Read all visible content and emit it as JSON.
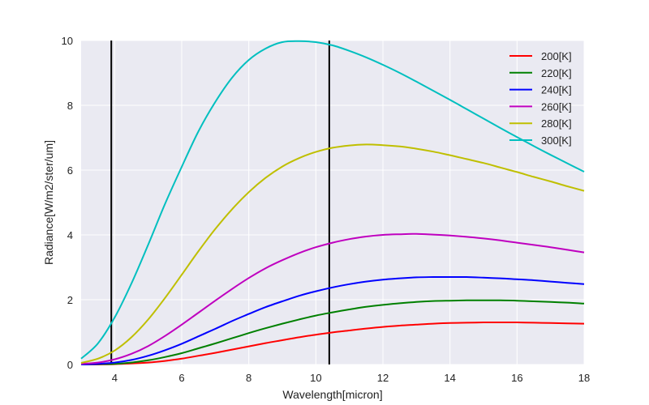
{
  "chart_data": {
    "type": "line",
    "title": "",
    "xlabel": "Wavelength[micron]",
    "ylabel": "Radiance[W/m2/ster/um]",
    "xlim": [
      3,
      18
    ],
    "ylim": [
      0,
      10
    ],
    "xticks": [
      4,
      6,
      8,
      10,
      12,
      14,
      16,
      18
    ],
    "yticks": [
      0,
      2,
      4,
      6,
      8,
      10
    ],
    "grid": true,
    "legend_position": "top-right",
    "x": [
      3,
      3.5,
      4,
      4.5,
      5,
      5.5,
      6,
      6.5,
      7,
      7.5,
      8,
      8.5,
      9,
      9.5,
      10,
      10.5,
      11,
      11.5,
      12,
      12.5,
      13,
      13.5,
      14,
      14.5,
      15,
      15.5,
      16,
      16.5,
      17,
      17.5,
      18
    ],
    "series": [
      {
        "name": "200[K]",
        "color": "#ff0000",
        "values": [
          0.0,
          0.0,
          0.01,
          0.03,
          0.06,
          0.11,
          0.18,
          0.27,
          0.36,
          0.46,
          0.56,
          0.66,
          0.75,
          0.84,
          0.92,
          0.99,
          1.05,
          1.11,
          1.16,
          1.2,
          1.23,
          1.26,
          1.28,
          1.29,
          1.3,
          1.3,
          1.3,
          1.29,
          1.28,
          1.27,
          1.26
        ]
      },
      {
        "name": "220[K]",
        "color": "#008000",
        "values": [
          0.0,
          0.01,
          0.02,
          0.06,
          0.13,
          0.23,
          0.35,
          0.5,
          0.65,
          0.81,
          0.97,
          1.12,
          1.26,
          1.39,
          1.51,
          1.61,
          1.7,
          1.78,
          1.84,
          1.89,
          1.93,
          1.96,
          1.97,
          1.98,
          1.98,
          1.98,
          1.97,
          1.95,
          1.93,
          1.91,
          1.88
        ]
      },
      {
        "name": "240[K]",
        "color": "#0000ff",
        "values": [
          0.0,
          0.02,
          0.06,
          0.14,
          0.27,
          0.44,
          0.64,
          0.87,
          1.1,
          1.34,
          1.56,
          1.77,
          1.95,
          2.12,
          2.26,
          2.38,
          2.48,
          2.56,
          2.62,
          2.66,
          2.69,
          2.7,
          2.7,
          2.7,
          2.68,
          2.66,
          2.63,
          2.6,
          2.56,
          2.52,
          2.48
        ]
      },
      {
        "name": "260[K]",
        "color": "#bf00bf",
        "values": [
          0.02,
          0.06,
          0.16,
          0.33,
          0.57,
          0.88,
          1.23,
          1.6,
          1.97,
          2.33,
          2.67,
          2.97,
          3.22,
          3.44,
          3.62,
          3.76,
          3.87,
          3.95,
          4.0,
          4.02,
          4.03,
          4.01,
          3.98,
          3.94,
          3.89,
          3.83,
          3.76,
          3.69,
          3.62,
          3.54,
          3.46
        ]
      },
      {
        "name": "280[K]",
        "color": "#bfbf00",
        "values": [
          0.05,
          0.18,
          0.43,
          0.84,
          1.39,
          2.05,
          2.77,
          3.5,
          4.18,
          4.79,
          5.32,
          5.76,
          6.11,
          6.37,
          6.56,
          6.69,
          6.76,
          6.79,
          6.77,
          6.73,
          6.66,
          6.57,
          6.46,
          6.34,
          6.22,
          6.08,
          5.94,
          5.79,
          5.65,
          5.5,
          5.36
        ]
      },
      {
        "name": "300[K]",
        "color": "#00bfbf",
        "values": [
          0.18,
          0.65,
          1.45,
          2.5,
          3.7,
          4.95,
          6.1,
          7.2,
          8.1,
          8.85,
          9.4,
          9.75,
          9.95,
          9.98,
          9.95,
          9.85,
          9.68,
          9.48,
          9.25,
          9.0,
          8.73,
          8.45,
          8.17,
          7.88,
          7.59,
          7.3,
          7.02,
          6.74,
          6.47,
          6.21,
          5.95
        ]
      }
    ],
    "vlines": [
      {
        "x": 3.9,
        "color": "#000000"
      },
      {
        "x": 10.4,
        "color": "#000000"
      }
    ]
  }
}
